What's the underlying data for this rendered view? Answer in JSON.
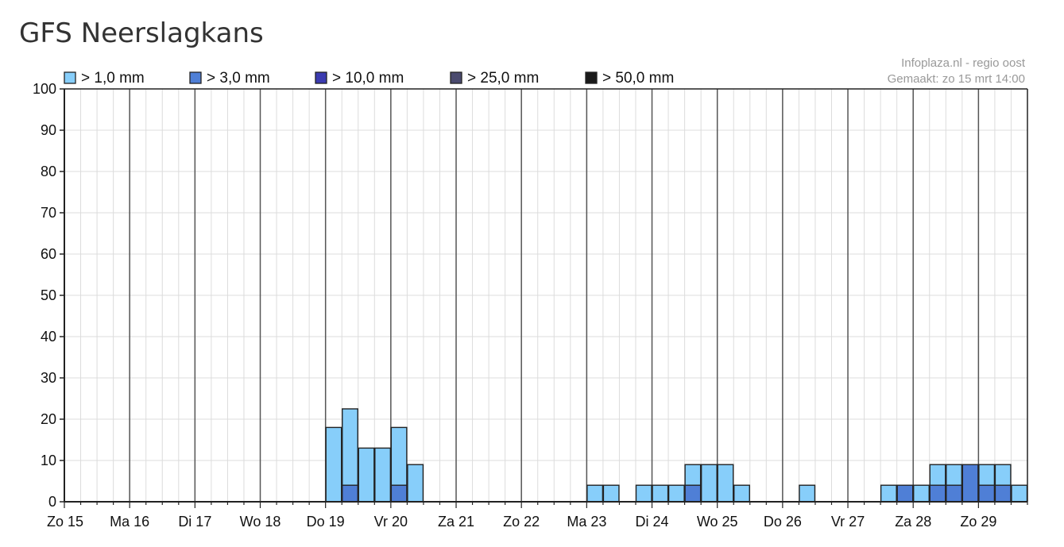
{
  "title": "GFS Neerslagkans",
  "credit": {
    "line1": "Infoplaza.nl - regio oost",
    "line2": "Gemaakt: zo 15 mrt 14:00"
  },
  "chart_data": {
    "type": "bar",
    "ylim": [
      0,
      100
    ],
    "yticks": [
      0,
      10,
      20,
      30,
      40,
      50,
      60,
      70,
      80,
      90,
      100
    ],
    "grid": true,
    "legend_position": "top",
    "day_labels": [
      "Zo 15",
      "Ma 16",
      "Di 17",
      "Wo 18",
      "Do 19",
      "Vr 20",
      "Za 21",
      "Zo 22",
      "Ma 23",
      "Di 24",
      "Wo 25",
      "Do 26",
      "Vr 27",
      "Za 28",
      "Zo 29"
    ],
    "slots_per_day": 4,
    "slot_count": 59,
    "series": [
      {
        "name": "> 1,0 mm",
        "color": "#87cefa",
        "values": [
          0,
          0,
          0,
          0,
          0,
          0,
          0,
          0,
          0,
          0,
          0,
          0,
          0,
          0,
          0,
          0,
          18,
          22.5,
          13,
          13,
          18,
          9,
          0,
          0,
          0,
          0,
          0,
          0,
          0,
          0,
          0,
          0,
          4,
          4,
          0,
          4,
          4,
          4,
          9,
          9,
          9,
          4,
          0,
          0,
          0,
          4,
          0,
          0,
          0,
          0,
          4,
          4,
          4,
          9,
          9,
          9,
          9,
          9,
          4
        ]
      },
      {
        "name": "> 3,0 mm",
        "color": "#4f7fd6",
        "values": [
          0,
          0,
          0,
          0,
          0,
          0,
          0,
          0,
          0,
          0,
          0,
          0,
          0,
          0,
          0,
          0,
          0,
          4,
          0,
          0,
          4,
          0,
          0,
          0,
          0,
          0,
          0,
          0,
          0,
          0,
          0,
          0,
          0,
          0,
          0,
          0,
          0,
          0,
          4,
          0,
          0,
          0,
          0,
          0,
          0,
          0,
          0,
          0,
          0,
          0,
          0,
          4,
          0,
          4,
          4,
          9,
          4,
          4,
          0
        ]
      },
      {
        "name": "> 10,0 mm",
        "color": "#3b3bb0",
        "values": []
      },
      {
        "name": "> 25,0 mm",
        "color": "#4a4a6e",
        "values": []
      },
      {
        "name": "> 50,0 mm",
        "color": "#1a1a1a",
        "values": []
      }
    ]
  }
}
